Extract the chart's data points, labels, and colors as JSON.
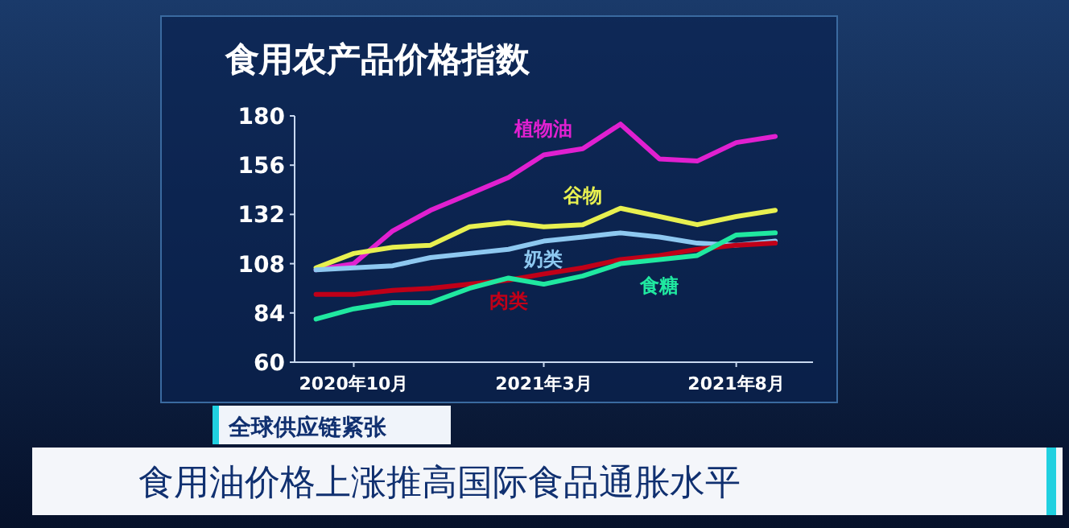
{
  "chart_data": {
    "type": "line",
    "title": "食用农产品价格指数",
    "x": [
      "2020-09",
      "2020-10",
      "2020-11",
      "2020-12",
      "2021-01",
      "2021-02",
      "2021-03",
      "2021-04",
      "2021-05",
      "2021-06",
      "2021-07",
      "2021-08",
      "2021-09"
    ],
    "series": [
      {
        "name": "植物油",
        "color": "#e020d0",
        "values": [
          105,
          108,
          124,
          134,
          142,
          150,
          161,
          164,
          176,
          159,
          158,
          167,
          170
        ]
      },
      {
        "name": "谷物",
        "color": "#e8f050",
        "values": [
          106,
          113,
          116,
          117,
          126,
          128,
          126,
          127,
          135,
          131,
          127,
          131,
          134
        ]
      },
      {
        "name": "奶类",
        "color": "#8ec8f0",
        "values": [
          105,
          106,
          107,
          111,
          113,
          115,
          119,
          121,
          123,
          121,
          118,
          117,
          119
        ]
      },
      {
        "name": "肉类",
        "color": "#c00018",
        "values": [
          93,
          93,
          95,
          96,
          98,
          100,
          103,
          106,
          110,
          112,
          115,
          117,
          118
        ]
      },
      {
        "name": "食糖",
        "color": "#20e8a0",
        "values": [
          81,
          86,
          89,
          89,
          96,
          101,
          98,
          102,
          108,
          110,
          112,
          122,
          123
        ]
      }
    ],
    "xlim": [
      "2020-08-15",
      "2021-10-01"
    ],
    "xticks": [
      {
        "value": "2020-10",
        "label": "2020年10月"
      },
      {
        "value": "2021-03",
        "label": "2021年3月"
      },
      {
        "value": "2021-08",
        "label": "2021年8月"
      }
    ],
    "ylim": [
      60,
      180
    ],
    "yticks": [
      60,
      84,
      108,
      132,
      156,
      180
    ],
    "annotations": [
      "全球供应链紧张",
      "食用油价格上涨推高国际食品通胀水平"
    ]
  }
}
